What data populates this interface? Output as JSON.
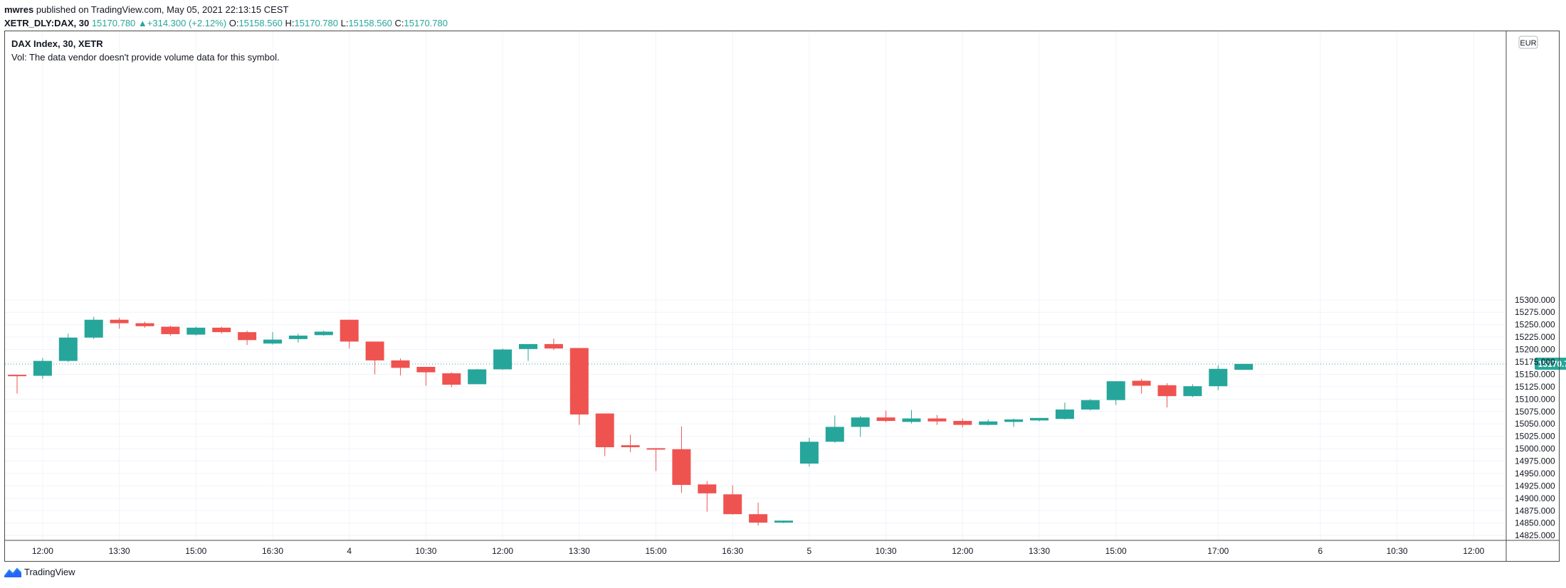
{
  "header": {
    "publisher": "mwres",
    "published_text": " published on TradingView.com, May 05, 2021 22:13:15 CEST",
    "symbol": "XETR_DLY:DAX, 30",
    "last": "15170.780",
    "change": "+314.300 (+2.12%)",
    "o_label": "O:",
    "o_value": "15158.560",
    "h_label": "H:",
    "h_value": "15170.780",
    "l_label": "L:",
    "l_value": "15158.560",
    "c_label": "C:",
    "c_value": "15170.780"
  },
  "legend": {
    "title": "DAX Index, 30, XETR",
    "vol_note": "Vol: The data vendor doesn't provide volume data for this symbol."
  },
  "footer": {
    "brand": "TradingView"
  },
  "colors": {
    "up": "#26a69a",
    "down": "#ef5350",
    "grid": "#f0f3fa",
    "axis_text": "#131722",
    "price_line": "#26a69a"
  },
  "chart_data": {
    "type": "candlestick",
    "currency": "EUR",
    "last_price_label": "15170.780",
    "last_price": 15170.78,
    "y_ticks": [
      "15300.000",
      "15275.000",
      "15250.000",
      "15225.000",
      "15200.000",
      "15175.000",
      "15150.000",
      "15125.000",
      "15100.000",
      "15075.000",
      "15050.000",
      "15025.000",
      "15000.000",
      "14975.000",
      "14950.000",
      "14925.000",
      "14900.000",
      "14875.000",
      "14850.000",
      "14825.000"
    ],
    "x_ticks": [
      "12:00",
      "13:30",
      "15:00",
      "16:30",
      "4",
      "10:30",
      "12:00",
      "13:30",
      "15:00",
      "16:30",
      "5",
      "10:30",
      "12:00",
      "13:30",
      "15:00",
      "17:00",
      "6",
      "10:30",
      "12:00"
    ],
    "x_tick_slots": [
      1,
      4,
      7,
      10,
      13,
      16,
      19,
      22,
      25,
      28,
      31,
      34,
      37,
      40,
      43,
      47,
      51,
      54,
      57
    ],
    "candles": [
      {
        "o": 15149,
        "h": 15149,
        "l": 15111,
        "c": 15147
      },
      {
        "o": 15147,
        "h": 15183,
        "l": 15141,
        "c": 15177
      },
      {
        "o": 15177,
        "h": 15232,
        "l": 15175,
        "c": 15224
      },
      {
        "o": 15224,
        "h": 15266,
        "l": 15221,
        "c": 15260
      },
      {
        "o": 15260,
        "h": 15264,
        "l": 15242,
        "c": 15253
      },
      {
        "o": 15253,
        "h": 15256,
        "l": 15244,
        "c": 15247
      },
      {
        "o": 15246,
        "h": 15248,
        "l": 15228,
        "c": 15231
      },
      {
        "o": 15230,
        "h": 15246,
        "l": 15228,
        "c": 15244
      },
      {
        "o": 15244,
        "h": 15246,
        "l": 15232,
        "c": 15235
      },
      {
        "o": 15235,
        "h": 15238,
        "l": 15209,
        "c": 15219
      },
      {
        "o": 15212,
        "h": 15235,
        "l": 15210,
        "c": 15220
      },
      {
        "o": 15221,
        "h": 15232,
        "l": 15214,
        "c": 15228
      },
      {
        "o": 15229,
        "h": 15238,
        "l": 15228,
        "c": 15236
      },
      {
        "o": 15260,
        "h": 15260,
        "l": 15202,
        "c": 15216
      },
      {
        "o": 15216,
        "h": 15216,
        "l": 15150,
        "c": 15178
      },
      {
        "o": 15178,
        "h": 15182,
        "l": 15148,
        "c": 15163
      },
      {
        "o": 15165,
        "h": 15165,
        "l": 15127,
        "c": 15154
      },
      {
        "o": 15152,
        "h": 15154,
        "l": 15124,
        "c": 15129
      },
      {
        "o": 15130,
        "h": 15161,
        "l": 15130,
        "c": 15160
      },
      {
        "o": 15160,
        "h": 15202,
        "l": 15159,
        "c": 15200
      },
      {
        "o": 15201,
        "h": 15211,
        "l": 15177,
        "c": 15211
      },
      {
        "o": 15211,
        "h": 15222,
        "l": 15199,
        "c": 15202
      },
      {
        "o": 15203,
        "h": 15203,
        "l": 15048,
        "c": 15069
      },
      {
        "o": 15071,
        "h": 15071,
        "l": 14985,
        "c": 15003
      },
      {
        "o": 15007,
        "h": 15028,
        "l": 14993,
        "c": 15003
      },
      {
        "o": 15001,
        "h": 15001,
        "l": 14955,
        "c": 14999
      },
      {
        "o": 14999,
        "h": 15045,
        "l": 14911,
        "c": 14927
      },
      {
        "o": 14928,
        "h": 14935,
        "l": 14873,
        "c": 14910
      },
      {
        "o": 14908,
        "h": 14926,
        "l": 14867,
        "c": 14868
      },
      {
        "o": 14868,
        "h": 14891,
        "l": 14845,
        "c": 14851
      },
      {
        "o": 14851,
        "h": 14855,
        "l": 14850,
        "c": 14855
      },
      {
        "o": 14970,
        "h": 15022,
        "l": 14964,
        "c": 15014
      },
      {
        "o": 15014,
        "h": 15067,
        "l": 15012,
        "c": 15044
      },
      {
        "o": 15044,
        "h": 15066,
        "l": 15024,
        "c": 15063
      },
      {
        "o": 15063,
        "h": 15077,
        "l": 15053,
        "c": 15056
      },
      {
        "o": 15054,
        "h": 15078,
        "l": 15051,
        "c": 15061
      },
      {
        "o": 15061,
        "h": 15068,
        "l": 15048,
        "c": 15055
      },
      {
        "o": 15056,
        "h": 15061,
        "l": 15043,
        "c": 15048
      },
      {
        "o": 15048,
        "h": 15059,
        "l": 15047,
        "c": 15055
      },
      {
        "o": 15054,
        "h": 15061,
        "l": 15044,
        "c": 15059
      },
      {
        "o": 15057,
        "h": 15062,
        "l": 15055,
        "c": 15062
      },
      {
        "o": 15060,
        "h": 15093,
        "l": 15059,
        "c": 15079
      },
      {
        "o": 15079,
        "h": 15100,
        "l": 15077,
        "c": 15098
      },
      {
        "o": 15098,
        "h": 15136,
        "l": 15088,
        "c": 15136
      },
      {
        "o": 15137,
        "h": 15141,
        "l": 15111,
        "c": 15127
      },
      {
        "o": 15128,
        "h": 15132,
        "l": 15083,
        "c": 15106
      },
      {
        "o": 15106,
        "h": 15130,
        "l": 15104,
        "c": 15126
      },
      {
        "o": 15126,
        "h": 15168,
        "l": 15118,
        "c": 15161
      },
      {
        "o": 15159,
        "h": 15171,
        "l": 15159,
        "c": 15171
      }
    ]
  }
}
